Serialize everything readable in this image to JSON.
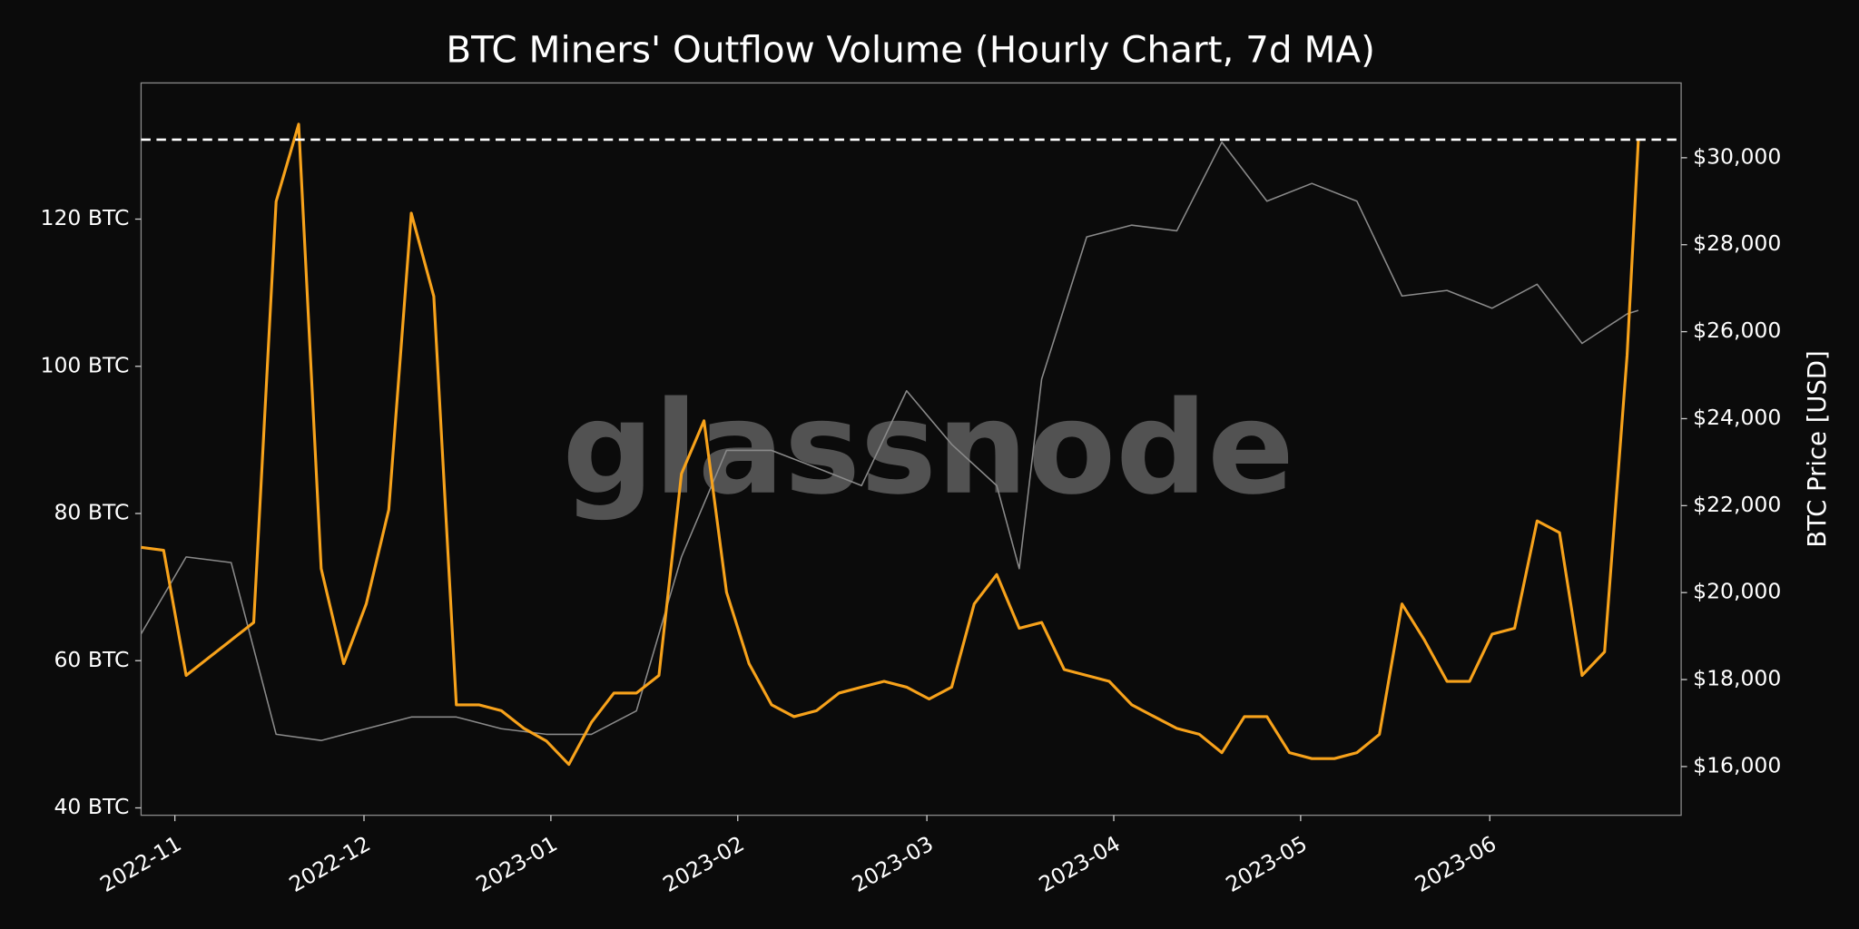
{
  "chart_data": {
    "type": "line",
    "title": "BTC Miners' Outflow Volume (Hourly Chart, 7d MA)",
    "y2label": "BTC Price [USD]",
    "watermark": "glassnode",
    "xlim": [
      2022.818,
      2023.502
    ],
    "xticks": [
      {
        "value": 2022.833,
        "label": "2022-11"
      },
      {
        "value": 2022.917,
        "label": "2022-12"
      },
      {
        "value": 2023.0,
        "label": "2023-01"
      },
      {
        "value": 2023.083,
        "label": "2023-02"
      },
      {
        "value": 2023.167,
        "label": "2023-03"
      },
      {
        "value": 2023.25,
        "label": "2023-04"
      },
      {
        "value": 2023.333,
        "label": "2023-05"
      },
      {
        "value": 2023.417,
        "label": "2023-06"
      }
    ],
    "ylim": [
      39,
      138.5
    ],
    "yticks": [
      {
        "value": 40,
        "label": "40 BTC"
      },
      {
        "value": 60,
        "label": "60 BTC"
      },
      {
        "value": 80,
        "label": "80 BTC"
      },
      {
        "value": 100,
        "label": "100 BTC"
      },
      {
        "value": 120,
        "label": "120 BTC"
      }
    ],
    "y2lim": [
      14880,
      31720
    ],
    "y2ticks": [
      {
        "value": 16000,
        "label": "$16,000"
      },
      {
        "value": 18000,
        "label": "$18,000"
      },
      {
        "value": 20000,
        "label": "$20,000"
      },
      {
        "value": 22000,
        "label": "$22,000"
      },
      {
        "value": 24000,
        "label": "$24,000"
      },
      {
        "value": 26000,
        "label": "$26,000"
      },
      {
        "value": 28000,
        "label": "$28,000"
      },
      {
        "value": 30000,
        "label": "$30,000"
      }
    ],
    "hline": {
      "value": 130.8,
      "color": "#ffffff"
    },
    "series": [
      {
        "name": "Outflow Volume",
        "color": "#f7a21b",
        "axis": "y",
        "x": [
          2022.818,
          2022.828,
          2022.838,
          2022.848,
          2022.858,
          2022.868,
          2022.878,
          2022.888,
          2022.898,
          2022.908,
          2022.918,
          2022.928,
          2022.938,
          2022.948,
          2022.958,
          2022.968,
          2022.978,
          2022.988,
          2022.998,
          2023.008,
          2023.018,
          2023.028,
          2023.038,
          2023.048,
          2023.058,
          2023.068,
          2023.078,
          2023.088,
          2023.098,
          2023.108,
          2023.118,
          2023.128,
          2023.138,
          2023.148,
          2023.158,
          2023.168,
          2023.178,
          2023.188,
          2023.198,
          2023.208,
          2023.218,
          2023.228,
          2023.238,
          2023.248,
          2023.258,
          2023.268,
          2023.278,
          2023.288,
          2023.298,
          2023.308,
          2023.318,
          2023.328,
          2023.338,
          2023.348,
          2023.358,
          2023.368,
          2023.378,
          2023.388,
          2023.398,
          2023.408,
          2023.418,
          2023.428,
          2023.438,
          2023.448,
          2023.458,
          2023.468,
          2023.478,
          2023.483
        ],
        "values": [
          75.4,
          75,
          58,
          60.4,
          62.8,
          65.2,
          122.4,
          132.9,
          72.5,
          59.6,
          67.7,
          80.5,
          120.8,
          109.5,
          54,
          54,
          53.2,
          50.8,
          49.1,
          45.9,
          51.6,
          55.6,
          55.6,
          58,
          85.4,
          92.6,
          69.3,
          59.6,
          54,
          52.4,
          53.2,
          55.6,
          56.4,
          57.2,
          56.4,
          54.8,
          56.4,
          67.7,
          71.7,
          64.4,
          65.2,
          58.8,
          58,
          57.2,
          54,
          52.4,
          50.8,
          50,
          47.5,
          52.4,
          52.4,
          47.5,
          46.7,
          46.7,
          47.5,
          50,
          67.7,
          62.8,
          57.2,
          57.2,
          63.6,
          64.4,
          79,
          77.4,
          58,
          61.2,
          101.5,
          130.8
        ]
      },
      {
        "name": "BTC Price",
        "color": "#8a8a8a",
        "axis": "y2",
        "x": [
          2022.818,
          2022.838,
          2022.858,
          2022.878,
          2022.898,
          2022.918,
          2022.938,
          2022.958,
          2022.978,
          2022.998,
          2023.018,
          2023.038,
          2023.058,
          2023.078,
          2023.098,
          2023.118,
          2023.138,
          2023.158,
          2023.178,
          2023.198,
          2023.208,
          2023.218,
          2023.238,
          2023.258,
          2023.278,
          2023.298,
          2023.318,
          2023.338,
          2023.358,
          2023.378,
          2023.398,
          2023.418,
          2023.438,
          2023.458,
          2023.478,
          2023.483
        ],
        "values": [
          19050,
          20820,
          20690,
          16740,
          16600,
          16870,
          17140,
          17140,
          16870,
          16740,
          16740,
          17280,
          20820,
          23270,
          23270,
          22870,
          22460,
          24640,
          23410,
          22460,
          20550,
          24910,
          28180,
          28450,
          28320,
          30360,
          29000,
          29410,
          29000,
          26820,
          26950,
          26540,
          27090,
          25730,
          26410,
          26490
        ]
      }
    ]
  }
}
